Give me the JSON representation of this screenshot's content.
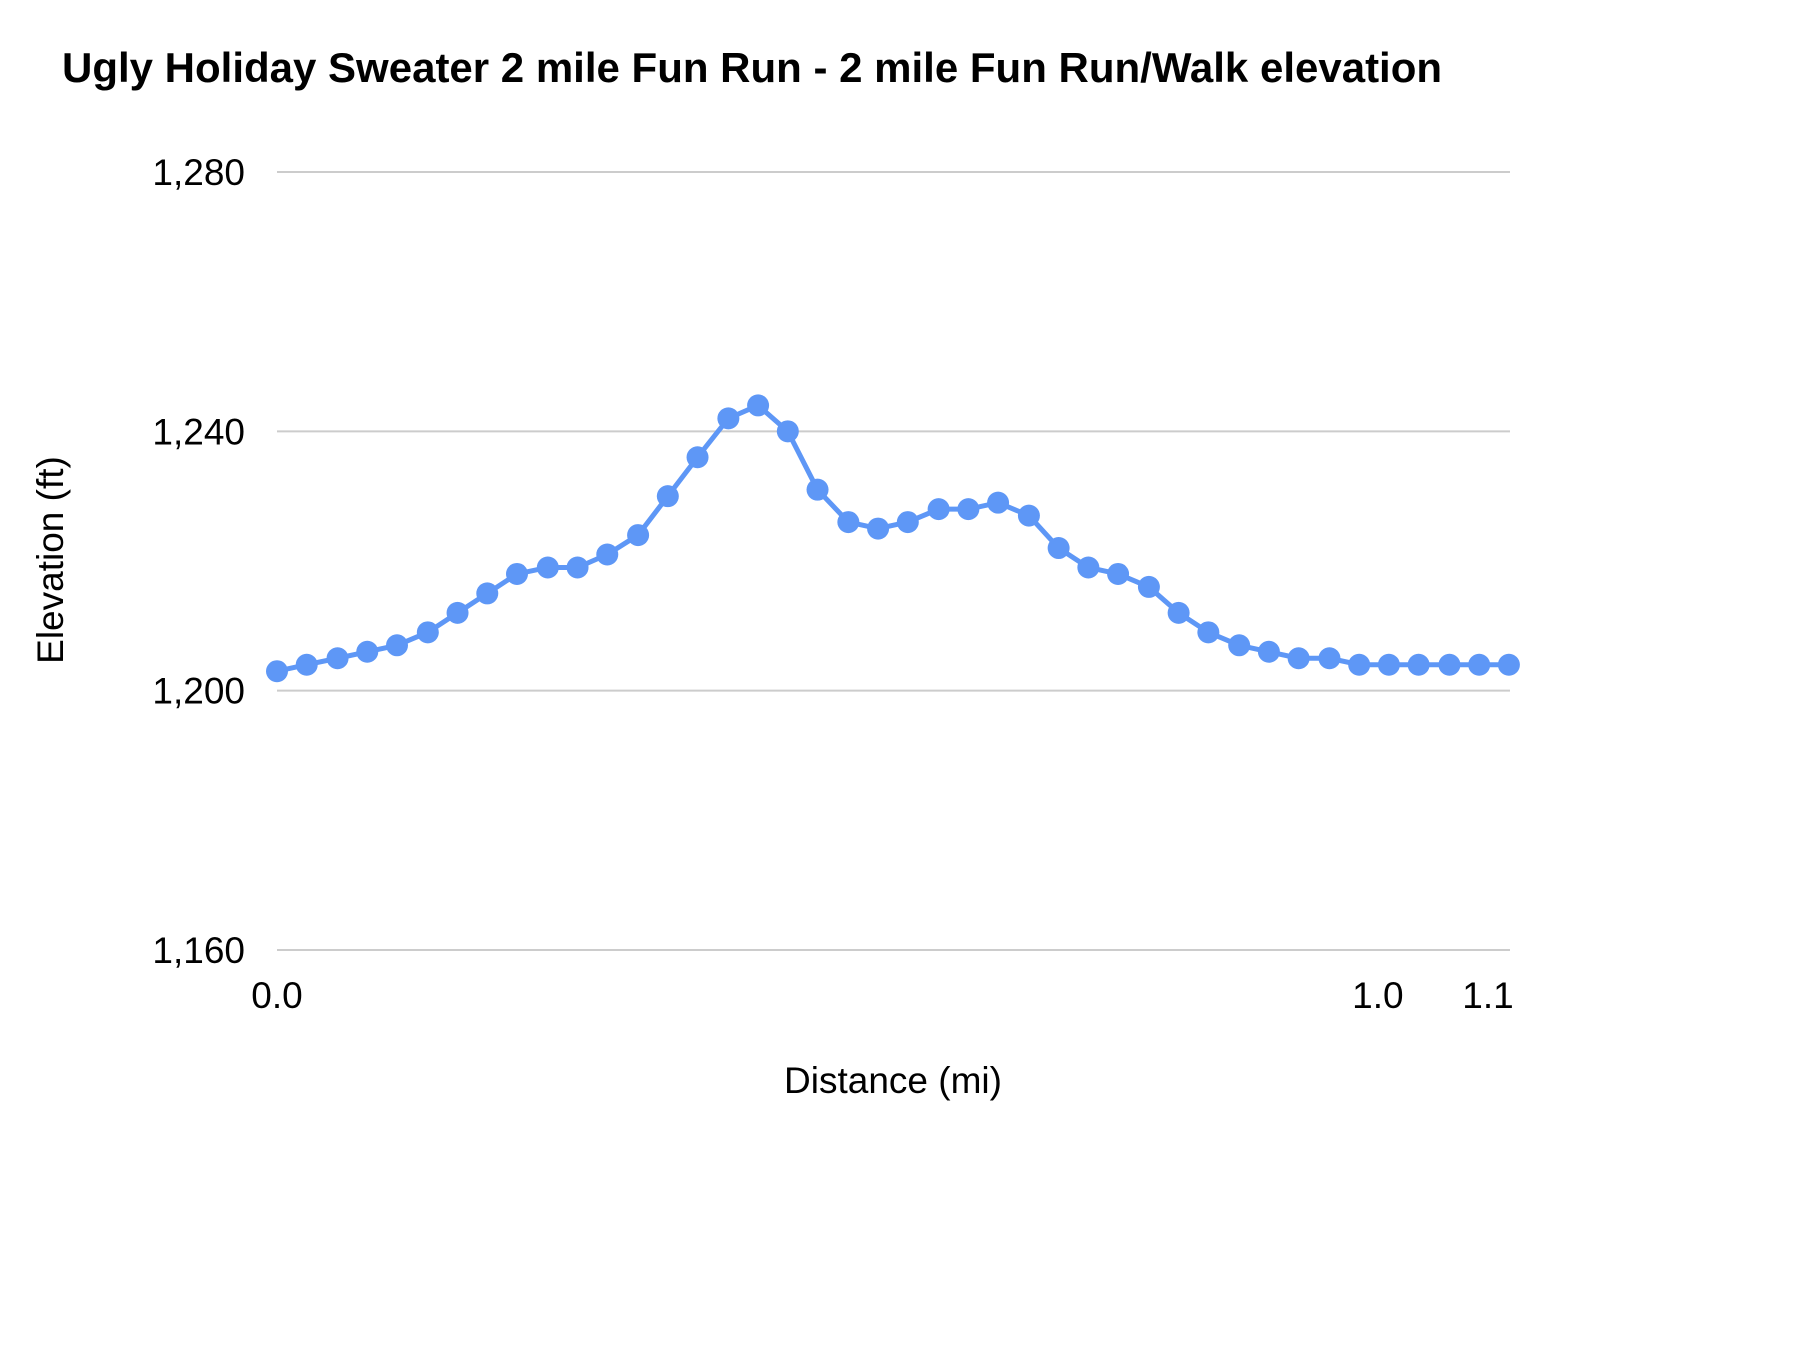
{
  "chart_data": {
    "type": "line",
    "title": "Ugly Holiday Sweater 2 mile Fun Run - 2 mile Fun Run/Walk elevation",
    "xlabel": "Distance (mi)",
    "ylabel": "Elevation (ft)",
    "xlim": [
      0,
      1.12
    ],
    "ylim": [
      1160,
      1280
    ],
    "grid": true,
    "legend_position": "none",
    "line_color": "#5e97f6",
    "grid_color": "#cccccc",
    "y_ticks": [
      {
        "value": 1160,
        "label": "1,160"
      },
      {
        "value": 1200,
        "label": "1,200"
      },
      {
        "value": 1240,
        "label": "1,240"
      },
      {
        "value": 1280,
        "label": "1,280"
      }
    ],
    "x_ticks": [
      {
        "value": 0.0,
        "label": "0.0"
      },
      {
        "value": 1.0,
        "label": "1.0"
      },
      {
        "value": 1.1,
        "label": "1.1"
      }
    ],
    "series": [
      {
        "name": "2 mile Fun Run/Walk elevation",
        "x": [
          0.0,
          0.027,
          0.055,
          0.082,
          0.109,
          0.137,
          0.164,
          0.191,
          0.218,
          0.246,
          0.273,
          0.3,
          0.328,
          0.355,
          0.382,
          0.41,
          0.437,
          0.464,
          0.491,
          0.519,
          0.546,
          0.573,
          0.601,
          0.628,
          0.655,
          0.683,
          0.71,
          0.737,
          0.764,
          0.792,
          0.819,
          0.846,
          0.874,
          0.901,
          0.928,
          0.956,
          0.983,
          1.01,
          1.037,
          1.065,
          1.092,
          1.119
        ],
        "y": [
          1203,
          1204,
          1205,
          1206,
          1207,
          1209,
          1212,
          1215,
          1218,
          1219,
          1219,
          1221,
          1224,
          1230,
          1236,
          1242,
          1244,
          1240,
          1231,
          1226,
          1225,
          1226,
          1228,
          1228,
          1229,
          1227,
          1222,
          1219,
          1218,
          1216,
          1212,
          1209,
          1207,
          1206,
          1205,
          1205,
          1204,
          1204,
          1204,
          1204,
          1204,
          1204
        ]
      }
    ]
  }
}
